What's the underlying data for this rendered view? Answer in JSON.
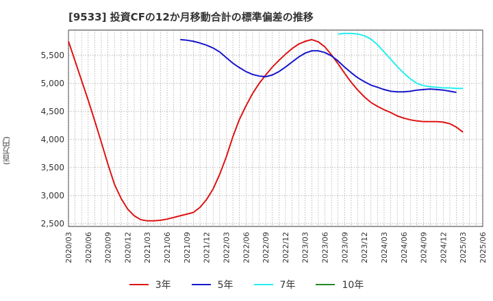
{
  "chart_data": {
    "type": "line",
    "title": "[9533]  投資CFの12か月移動合計の標準偏差の推移",
    "ylabel": "(百万円)",
    "ylim": [
      2450,
      5950
    ],
    "yticks": [
      "2,500",
      "3,000",
      "3,500",
      "4,000",
      "4,500",
      "5,000",
      "5,500"
    ],
    "ytick_values": [
      2500,
      3000,
      3500,
      4000,
      4500,
      5000,
      5500
    ],
    "xticks": [
      "2020/03",
      "2020/06",
      "2020/09",
      "2020/12",
      "2021/03",
      "2021/06",
      "2021/09",
      "2021/12",
      "2022/03",
      "2022/06",
      "2022/09",
      "2022/12",
      "2023/03",
      "2023/06",
      "2023/09",
      "2023/12",
      "2024/03",
      "2024/06",
      "2024/09",
      "2024/12",
      "2025/03",
      "2025/06"
    ],
    "grid": true,
    "legend_position": "bottom",
    "series": [
      {
        "name": "3年",
        "color": "#dd1111",
        "start": "2020/03",
        "values": [
          5750,
          5400,
          5050,
          4700,
          4330,
          3950,
          3560,
          3200,
          2950,
          2760,
          2640,
          2570,
          2550,
          2550,
          2560,
          2580,
          2610,
          2640,
          2670,
          2700,
          2790,
          2930,
          3120,
          3380,
          3690,
          4050,
          4360,
          4600,
          4820,
          5000,
          5150,
          5290,
          5410,
          5520,
          5620,
          5700,
          5750,
          5780,
          5740,
          5650,
          5510,
          5350,
          5180,
          5020,
          4880,
          4760,
          4660,
          4590,
          4530,
          4480,
          4420,
          4380,
          4350,
          4330,
          4320,
          4320,
          4320,
          4310,
          4280,
          4220,
          4130
        ]
      },
      {
        "name": "5年",
        "color": "#1515cc",
        "start": "2021/08",
        "values": [
          5780,
          5770,
          5750,
          5720,
          5680,
          5630,
          5560,
          5460,
          5360,
          5280,
          5210,
          5160,
          5130,
          5120,
          5150,
          5210,
          5290,
          5380,
          5470,
          5540,
          5580,
          5580,
          5550,
          5490,
          5400,
          5290,
          5190,
          5100,
          5030,
          4970,
          4930,
          4890,
          4860,
          4850,
          4850,
          4860,
          4880,
          4890,
          4900,
          4890,
          4880,
          4860,
          4840
        ]
      },
      {
        "name": "7年",
        "color": "#22eeee",
        "start": "2023/08",
        "values": [
          5880,
          5890,
          5890,
          5880,
          5850,
          5790,
          5690,
          5560,
          5430,
          5300,
          5180,
          5080,
          5000,
          4960,
          4940,
          4930,
          4920,
          4920,
          4910,
          4910
        ]
      },
      {
        "name": "10年",
        "color": "#228822",
        "start": "2025/03",
        "values": []
      }
    ]
  }
}
